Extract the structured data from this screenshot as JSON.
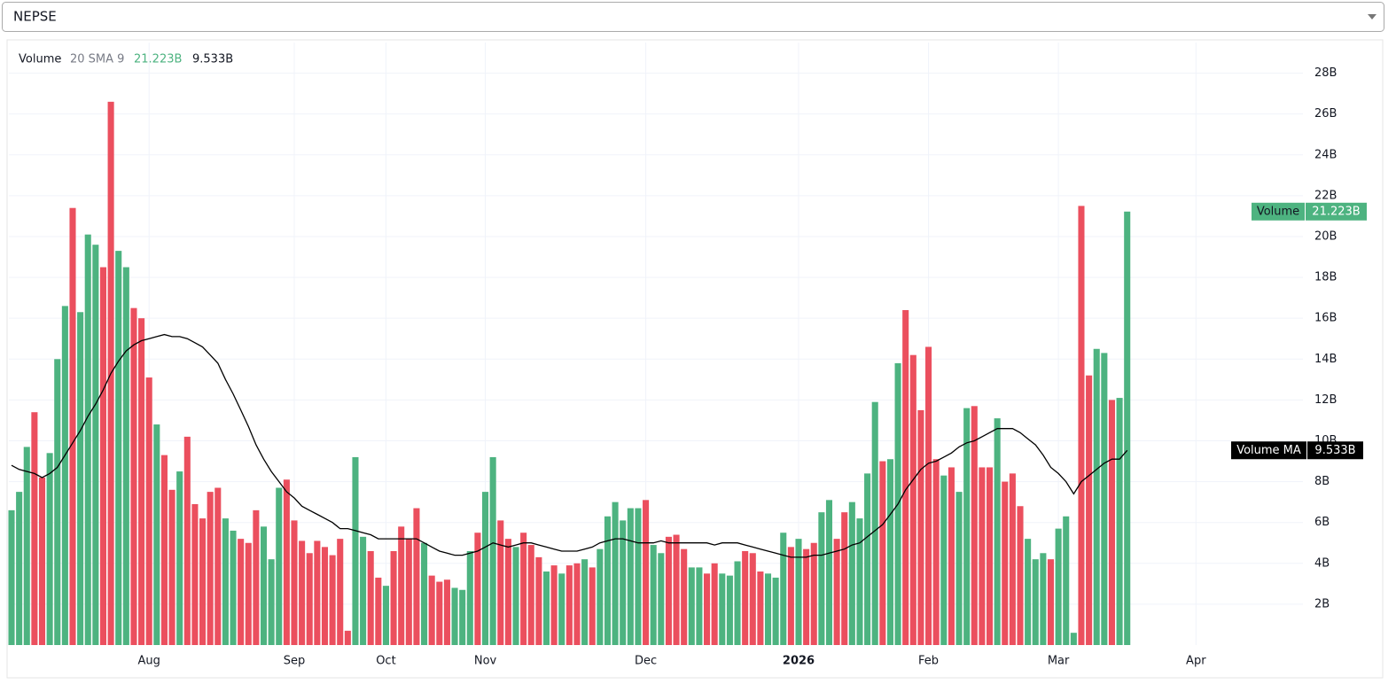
{
  "header": {
    "selector": "NEPSE"
  },
  "chart_data": {
    "type": "bar",
    "study_name": "Volume",
    "study_params": "20 SMA 9",
    "ylim": [
      0,
      29.5
    ],
    "yticks": [
      {
        "value": 2,
        "label": "2B"
      },
      {
        "value": 4,
        "label": "4B"
      },
      {
        "value": 6,
        "label": "6B"
      },
      {
        "value": 8,
        "label": "8B"
      },
      {
        "value": 10,
        "label": "10B"
      },
      {
        "value": 12,
        "label": "12B"
      },
      {
        "value": 14,
        "label": "14B"
      },
      {
        "value": 16,
        "label": "16B"
      },
      {
        "value": 18,
        "label": "18B"
      },
      {
        "value": 20,
        "label": "20B"
      },
      {
        "value": 22,
        "label": "22B"
      },
      {
        "value": 24,
        "label": "24B"
      },
      {
        "value": 26,
        "label": "26B"
      },
      {
        "value": 28,
        "label": "28B"
      }
    ],
    "xlim": [
      -0.35,
      169
    ],
    "xticks": [
      {
        "value": 18,
        "label": "Aug"
      },
      {
        "value": 37,
        "label": "Sep"
      },
      {
        "value": 49,
        "label": "Oct"
      },
      {
        "value": 62,
        "label": "Nov"
      },
      {
        "value": 83,
        "label": "Dec"
      },
      {
        "value": 103,
        "label": "2026"
      },
      {
        "value": 120,
        "label": "Feb"
      },
      {
        "value": 137,
        "label": "Mar"
      },
      {
        "value": 155,
        "label": "Apr"
      }
    ],
    "grid": true,
    "series": [
      {
        "name": "Volume",
        "last_value_label": "21.223B",
        "color": "#4db380",
        "values": [
          6.6,
          7.5,
          9.7,
          11.4,
          8.2,
          9.4,
          14.0,
          16.6,
          21.4,
          16.3,
          20.1,
          19.6,
          18.5,
          26.6,
          19.3,
          18.5,
          16.5,
          16.0,
          13.1,
          10.8,
          9.3,
          7.6,
          8.5,
          10.2,
          6.9,
          6.2,
          7.5,
          7.7,
          6.2,
          5.6,
          5.2,
          5.0,
          6.6,
          5.8,
          4.2,
          7.7,
          8.1,
          6.1,
          5.1,
          4.5,
          5.1,
          4.8,
          4.4,
          5.2,
          0.7,
          9.2,
          5.3,
          4.6,
          3.3,
          2.9,
          4.6,
          5.8,
          5.2,
          6.7,
          5.0,
          3.4,
          3.1,
          3.2,
          2.8,
          2.7,
          4.6,
          5.5,
          7.5,
          9.2,
          6.1,
          5.2,
          4.8,
          5.5,
          4.9,
          4.3,
          3.6,
          3.9,
          3.5,
          3.9,
          4.0,
          4.2,
          3.8,
          4.7,
          6.3,
          7.0,
          6.1,
          6.7,
          6.7,
          7.1,
          4.9,
          4.5,
          5.3,
          5.4,
          4.7,
          3.8,
          3.8,
          3.5,
          4.0,
          3.5,
          3.4,
          4.1,
          4.6,
          4.5,
          3.6,
          3.5,
          3.3,
          5.5,
          4.8,
          5.2,
          4.7,
          5.0,
          6.5,
          7.1,
          5.2,
          6.5,
          7.0,
          6.2,
          8.4,
          11.9,
          9.0,
          9.1,
          13.8,
          16.4,
          14.2,
          11.5,
          14.6,
          9.1,
          8.3,
          8.7,
          7.5,
          11.6,
          11.7,
          8.7,
          8.7,
          11.1,
          8.0,
          8.4,
          6.8,
          5.2,
          4.2,
          4.5,
          4.2,
          5.7,
          6.3,
          0.6,
          21.5,
          13.2,
          14.5,
          14.3,
          12.0,
          12.1,
          21.223
        ],
        "colors": [
          "#4db380",
          "#4db380",
          "#4db380",
          "#eb4f5e",
          "#eb4f5e",
          "#4db380",
          "#4db380",
          "#4db380",
          "#eb4f5e",
          "#4db380",
          "#4db380",
          "#4db380",
          "#eb4f5e",
          "#eb4f5e",
          "#4db380",
          "#4db380",
          "#eb4f5e",
          "#eb4f5e",
          "#eb4f5e",
          "#4db380",
          "#eb4f5e",
          "#eb4f5e",
          "#4db380",
          "#eb4f5e",
          "#eb4f5e",
          "#eb4f5e",
          "#eb4f5e",
          "#eb4f5e",
          "#4db380",
          "#4db380",
          "#eb4f5e",
          "#eb4f5e",
          "#eb4f5e",
          "#4db380",
          "#4db380",
          "#4db380",
          "#eb4f5e",
          "#eb4f5e",
          "#eb4f5e",
          "#eb4f5e",
          "#eb4f5e",
          "#eb4f5e",
          "#eb4f5e",
          "#eb4f5e",
          "#eb4f5e",
          "#4db380",
          "#4db380",
          "#eb4f5e",
          "#eb4f5e",
          "#4db380",
          "#eb4f5e",
          "#eb4f5e",
          "#eb4f5e",
          "#eb4f5e",
          "#4db380",
          "#eb4f5e",
          "#eb4f5e",
          "#eb4f5e",
          "#4db380",
          "#4db380",
          "#4db380",
          "#eb4f5e",
          "#4db380",
          "#4db380",
          "#eb4f5e",
          "#eb4f5e",
          "#4db380",
          "#eb4f5e",
          "#eb4f5e",
          "#eb4f5e",
          "#4db380",
          "#eb4f5e",
          "#4db380",
          "#eb4f5e",
          "#eb4f5e",
          "#4db380",
          "#eb4f5e",
          "#4db380",
          "#4db380",
          "#4db380",
          "#4db380",
          "#4db380",
          "#4db380",
          "#eb4f5e",
          "#4db380",
          "#4db380",
          "#eb4f5e",
          "#eb4f5e",
          "#eb4f5e",
          "#4db380",
          "#4db380",
          "#eb4f5e",
          "#eb4f5e",
          "#4db380",
          "#4db380",
          "#4db380",
          "#eb4f5e",
          "#eb4f5e",
          "#eb4f5e",
          "#4db380",
          "#4db380",
          "#4db380",
          "#eb4f5e",
          "#4db380",
          "#eb4f5e",
          "#eb4f5e",
          "#4db380",
          "#4db380",
          "#eb4f5e",
          "#eb4f5e",
          "#4db380",
          "#4db380",
          "#4db380",
          "#4db380",
          "#eb4f5e",
          "#4db380",
          "#4db380",
          "#eb4f5e",
          "#eb4f5e",
          "#eb4f5e",
          "#eb4f5e",
          "#eb4f5e",
          "#4db380",
          "#eb4f5e",
          "#4db380",
          "#4db380",
          "#eb4f5e",
          "#eb4f5e",
          "#eb4f5e",
          "#4db380",
          "#eb4f5e",
          "#eb4f5e",
          "#eb4f5e",
          "#4db380",
          "#4db380",
          "#4db380",
          "#eb4f5e",
          "#4db380",
          "#4db380",
          "#4db380",
          "#eb4f5e",
          "#eb4f5e",
          "#4db380",
          "#4db380",
          "#eb4f5e",
          "#4db380",
          "#4db380"
        ]
      },
      {
        "name": "Volume MA",
        "last_value_label": "9.533B",
        "color": "#000000",
        "type": "line",
        "values": [
          8.8,
          8.6,
          8.5,
          8.4,
          8.2,
          8.4,
          8.7,
          9.3,
          9.9,
          10.5,
          11.2,
          11.8,
          12.5,
          13.3,
          13.9,
          14.4,
          14.7,
          14.9,
          15.0,
          15.1,
          15.2,
          15.1,
          15.1,
          15.0,
          14.8,
          14.6,
          14.2,
          13.8,
          13.0,
          12.3,
          11.5,
          10.7,
          9.8,
          9.1,
          8.5,
          8.0,
          7.5,
          7.2,
          6.8,
          6.6,
          6.4,
          6.2,
          6.0,
          5.7,
          5.7,
          5.6,
          5.5,
          5.4,
          5.2,
          5.2,
          5.2,
          5.2,
          5.2,
          5.2,
          5.0,
          4.8,
          4.6,
          4.5,
          4.4,
          4.4,
          4.5,
          4.6,
          4.8,
          5.0,
          4.9,
          4.8,
          4.9,
          5.0,
          5.0,
          4.9,
          4.8,
          4.7,
          4.6,
          4.6,
          4.6,
          4.7,
          4.8,
          5.0,
          5.1,
          5.2,
          5.2,
          5.1,
          5.0,
          5.0,
          5.0,
          5.1,
          5.0,
          5.0,
          5.0,
          5.0,
          5.0,
          5.0,
          4.9,
          5.0,
          5.0,
          5.0,
          4.9,
          4.8,
          4.7,
          4.6,
          4.5,
          4.4,
          4.3,
          4.3,
          4.3,
          4.4,
          4.4,
          4.5,
          4.6,
          4.7,
          4.9,
          5.0,
          5.3,
          5.6,
          5.9,
          6.4,
          6.9,
          7.6,
          8.1,
          8.6,
          8.9,
          9.0,
          9.2,
          9.4,
          9.7,
          9.9,
          10.0,
          10.2,
          10.4,
          10.6,
          10.6,
          10.6,
          10.4,
          10.1,
          9.8,
          9.3,
          8.7,
          8.4,
          8.0,
          7.4,
          8.0,
          8.3,
          8.6,
          8.9,
          9.1,
          9.1,
          9.533
        ]
      }
    ]
  }
}
